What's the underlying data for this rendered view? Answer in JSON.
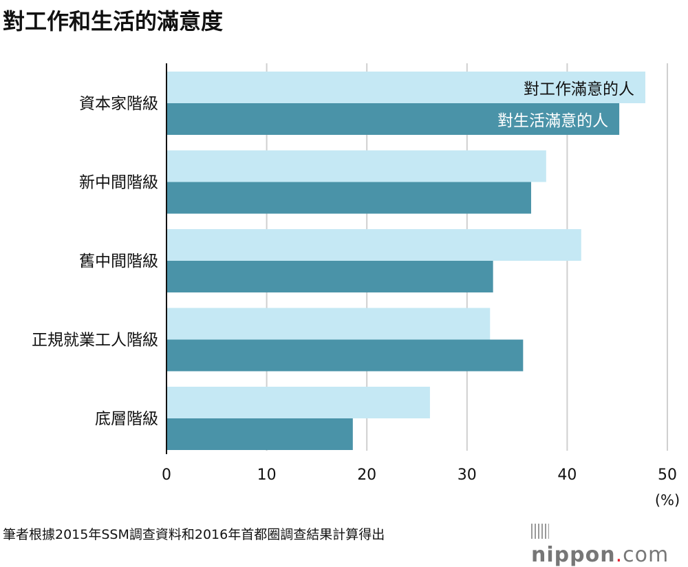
{
  "title": "對工作和生活的滿意度",
  "source": "筆者根據2015年SSM調查資料和2016年首都圈調查結果計算得出",
  "logo": "nippon.com",
  "chart_data": {
    "type": "bar",
    "orientation": "horizontal",
    "categories": [
      "資本家階級",
      "新中間階級",
      "舊中間階級",
      "正規就業工人階級",
      "底層階級"
    ],
    "series": [
      {
        "name": "對工作滿意的人",
        "color": "#c5e8f4",
        "values": [
          47.8,
          37.9,
          41.4,
          32.3,
          26.3
        ]
      },
      {
        "name": "對生活滿意的人",
        "color": "#4a93a8",
        "values": [
          45.2,
          36.4,
          32.6,
          35.6,
          18.6
        ]
      }
    ],
    "xlim": [
      0,
      50
    ],
    "xticks": [
      0,
      10,
      20,
      30,
      40,
      50
    ],
    "xlabel": "(%)",
    "grid": true,
    "legend": "inside first bars"
  }
}
